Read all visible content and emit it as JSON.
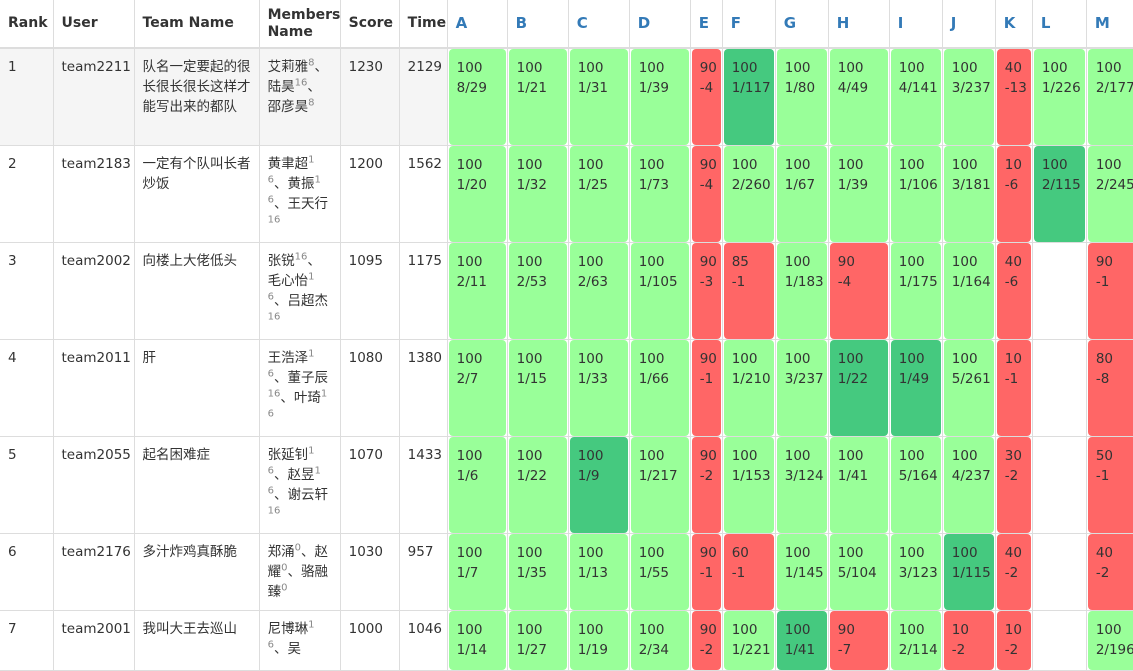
{
  "headers": {
    "rank": "Rank",
    "user": "User",
    "team": "Team Name",
    "members": "Members Name",
    "score": "Score",
    "time": "Time"
  },
  "problems": [
    "A",
    "B",
    "C",
    "D",
    "E",
    "F",
    "G",
    "H",
    "I",
    "J",
    "K",
    "L",
    "M"
  ],
  "colors": {
    "accepted": "#99ff99",
    "first_blood": "#45c97f",
    "wrong": "#ff6666",
    "header_link": "#337ab7"
  },
  "rows": [
    {
      "rank": "1",
      "user": "team2211",
      "team": "队名一定要起的很长很长很长这样才能写出来的都队",
      "members": [
        {
          "name": "艾莉雅",
          "sup": "8"
        },
        {
          "name": "陆昊",
          "sup": "16"
        },
        {
          "name": "邵彦昊",
          "sup": "8"
        }
      ],
      "score": "1230",
      "time": "2129",
      "cells": [
        [
          "ac",
          "100",
          "8/29"
        ],
        [
          "ac",
          "100",
          "1/21"
        ],
        [
          "ac",
          "100",
          "1/31"
        ],
        [
          "ac",
          "100",
          "1/39"
        ],
        [
          "wa",
          "90",
          "-4"
        ],
        [
          "fb",
          "100",
          "1/117"
        ],
        [
          "ac",
          "100",
          "1/80"
        ],
        [
          "ac",
          "100",
          "4/49"
        ],
        [
          "ac",
          "100",
          "4/141"
        ],
        [
          "ac",
          "100",
          "3/237"
        ],
        [
          "wa",
          "40",
          "-13"
        ],
        [
          "ac",
          "100",
          "1/226"
        ],
        [
          "ac",
          "100",
          "2/177"
        ]
      ]
    },
    {
      "rank": "2",
      "user": "team2183",
      "team": "一定有个队叫长者炒饭",
      "members": [
        {
          "name": "黄聿超",
          "sup": "16"
        },
        {
          "name": "黄振",
          "sup": "16"
        },
        {
          "name": "王天行",
          "sup": "16"
        }
      ],
      "score": "1200",
      "time": "1562",
      "cells": [
        [
          "ac",
          "100",
          "1/20"
        ],
        [
          "ac",
          "100",
          "1/32"
        ],
        [
          "ac",
          "100",
          "1/25"
        ],
        [
          "ac",
          "100",
          "1/73"
        ],
        [
          "wa",
          "90",
          "-4"
        ],
        [
          "ac",
          "100",
          "2/260"
        ],
        [
          "ac",
          "100",
          "1/67"
        ],
        [
          "ac",
          "100",
          "1/39"
        ],
        [
          "ac",
          "100",
          "1/106"
        ],
        [
          "ac",
          "100",
          "3/181"
        ],
        [
          "wa",
          "10",
          "-6"
        ],
        [
          "fb",
          "100",
          "2/115"
        ],
        [
          "ac",
          "100",
          "2/245"
        ]
      ]
    },
    {
      "rank": "3",
      "user": "team2002",
      "team": "向楼上大佬低头",
      "members": [
        {
          "name": "张锐",
          "sup": "16"
        },
        {
          "name": "毛心怡",
          "sup": "16"
        },
        {
          "name": "吕超杰",
          "sup": "16"
        }
      ],
      "score": "1095",
      "time": "1175",
      "cells": [
        [
          "ac",
          "100",
          "2/11"
        ],
        [
          "ac",
          "100",
          "2/53"
        ],
        [
          "ac",
          "100",
          "2/63"
        ],
        [
          "ac",
          "100",
          "1/105"
        ],
        [
          "wa",
          "90",
          "-3"
        ],
        [
          "wa",
          "85",
          "-1"
        ],
        [
          "ac",
          "100",
          "1/183"
        ],
        [
          "wa",
          "90",
          "-4"
        ],
        [
          "ac",
          "100",
          "1/175"
        ],
        [
          "ac",
          "100",
          "1/164"
        ],
        [
          "wa",
          "40",
          "-6"
        ],
        [
          "empty",
          "",
          ""
        ],
        [
          "wa",
          "90",
          "-1"
        ]
      ]
    },
    {
      "rank": "4",
      "user": "team2011",
      "team": "肝",
      "members": [
        {
          "name": "王浩泽",
          "sup": "16"
        },
        {
          "name": "董子辰",
          "sup": "16"
        },
        {
          "name": "叶琦",
          "sup": "16"
        }
      ],
      "score": "1080",
      "time": "1380",
      "cells": [
        [
          "ac",
          "100",
          "2/7"
        ],
        [
          "ac",
          "100",
          "1/15"
        ],
        [
          "ac",
          "100",
          "1/33"
        ],
        [
          "ac",
          "100",
          "1/66"
        ],
        [
          "wa",
          "90",
          "-1"
        ],
        [
          "ac",
          "100",
          "1/210"
        ],
        [
          "ac",
          "100",
          "3/237"
        ],
        [
          "fb",
          "100",
          "1/22"
        ],
        [
          "fb",
          "100",
          "1/49"
        ],
        [
          "ac",
          "100",
          "5/261"
        ],
        [
          "wa",
          "10",
          "-1"
        ],
        [
          "empty",
          "",
          ""
        ],
        [
          "wa",
          "80",
          "-8"
        ]
      ]
    },
    {
      "rank": "5",
      "user": "team2055",
      "team": "起名困难症",
      "members": [
        {
          "name": "张延钊",
          "sup": "16"
        },
        {
          "name": "赵昱",
          "sup": "16"
        },
        {
          "name": "谢云轩",
          "sup": "16"
        }
      ],
      "score": "1070",
      "time": "1433",
      "cells": [
        [
          "ac",
          "100",
          "1/6"
        ],
        [
          "ac",
          "100",
          "1/22"
        ],
        [
          "fb",
          "100",
          "1/9"
        ],
        [
          "ac",
          "100",
          "1/217"
        ],
        [
          "wa",
          "90",
          "-2"
        ],
        [
          "ac",
          "100",
          "1/153"
        ],
        [
          "ac",
          "100",
          "3/124"
        ],
        [
          "ac",
          "100",
          "1/41"
        ],
        [
          "ac",
          "100",
          "5/164"
        ],
        [
          "ac",
          "100",
          "4/237"
        ],
        [
          "wa",
          "30",
          "-2"
        ],
        [
          "empty",
          "",
          ""
        ],
        [
          "wa",
          "50",
          "-1"
        ]
      ]
    },
    {
      "rank": "6",
      "user": "team2176",
      "team": "多汁炸鸡真酥脆",
      "members": [
        {
          "name": "郑涌",
          "sup": "0"
        },
        {
          "name": "赵耀",
          "sup": "0"
        },
        {
          "name": "骆融臻",
          "sup": "0"
        }
      ],
      "score": "1030",
      "time": "957",
      "cells": [
        [
          "ac",
          "100",
          "1/7"
        ],
        [
          "ac",
          "100",
          "1/35"
        ],
        [
          "ac",
          "100",
          "1/13"
        ],
        [
          "ac",
          "100",
          "1/55"
        ],
        [
          "wa",
          "90",
          "-1"
        ],
        [
          "wa",
          "60",
          "-1"
        ],
        [
          "ac",
          "100",
          "1/145"
        ],
        [
          "ac",
          "100",
          "5/104"
        ],
        [
          "ac",
          "100",
          "3/123"
        ],
        [
          "fb",
          "100",
          "1/115"
        ],
        [
          "wa",
          "40",
          "-2"
        ],
        [
          "empty",
          "",
          ""
        ],
        [
          "wa",
          "40",
          "-2"
        ]
      ]
    },
    {
      "rank": "7",
      "user": "team2001",
      "team": "我叫大王去巡山",
      "members": [
        {
          "name": "尼博琳",
          "sup": "16"
        },
        {
          "name": "吴",
          "sup": ""
        }
      ],
      "score": "1000",
      "time": "1046",
      "cells": [
        [
          "ac",
          "100",
          "1/14"
        ],
        [
          "ac",
          "100",
          "1/27"
        ],
        [
          "ac",
          "100",
          "1/19"
        ],
        [
          "ac",
          "100",
          "2/34"
        ],
        [
          "wa",
          "90",
          "-2"
        ],
        [
          "ac",
          "100",
          "1/221"
        ],
        [
          "fb",
          "100",
          "1/41"
        ],
        [
          "wa",
          "90",
          "-7"
        ],
        [
          "ac",
          "100",
          "2/114"
        ],
        [
          "wa",
          "10",
          "-2"
        ],
        [
          "wa",
          "10",
          "-2"
        ],
        [
          "empty",
          "",
          ""
        ],
        [
          "ac",
          "100",
          "2/196"
        ]
      ]
    }
  ]
}
